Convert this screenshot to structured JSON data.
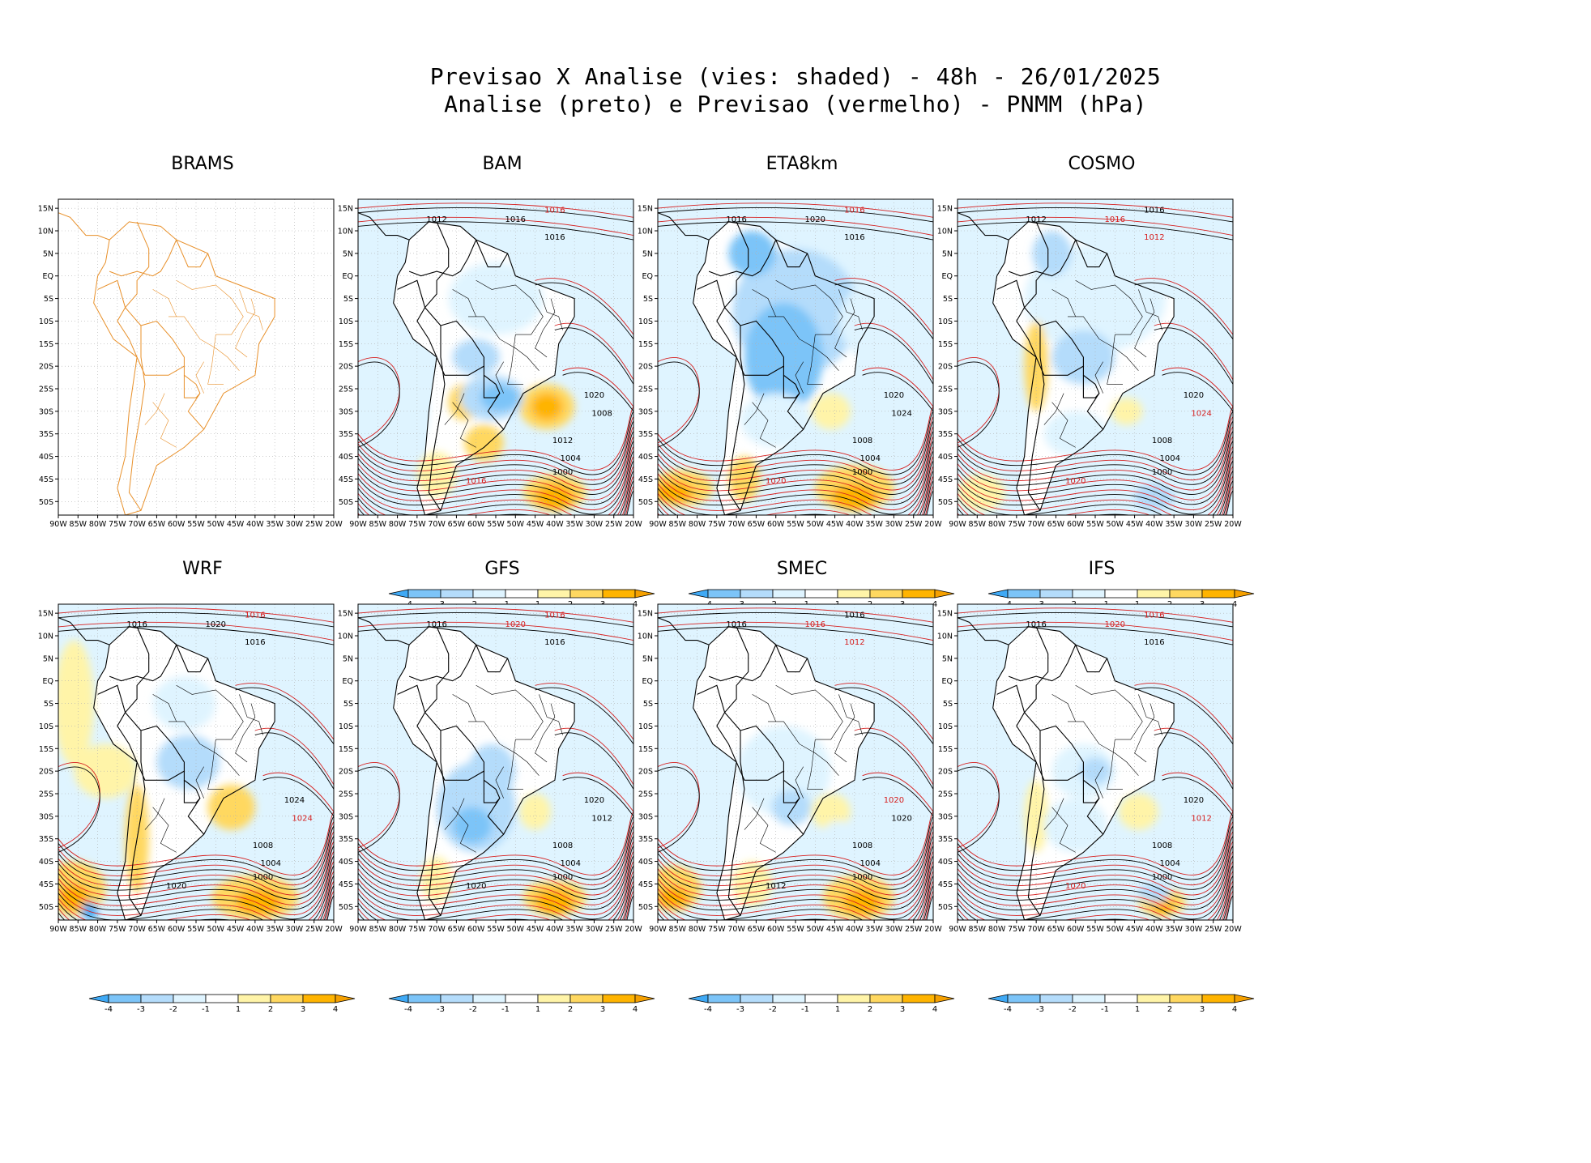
{
  "header": {
    "title_line1": "Previsao X Analise (vies: shaded) - 48h - 26/01/2025",
    "title_line2": "Analise (preto) e Previsao (vermelho) - PNMM (hPa)"
  },
  "axes": {
    "lon_labels": [
      "90W",
      "85W",
      "80W",
      "75W",
      "70W",
      "65W",
      "60W",
      "55W",
      "50W",
      "45W",
      "40W",
      "35W",
      "30W",
      "25W",
      "20W"
    ],
    "lat_labels": [
      "15N",
      "10N",
      "5N",
      "EQ",
      "5S",
      "10S",
      "15S",
      "20S",
      "25S",
      "30S",
      "35S",
      "40S",
      "45S",
      "50S"
    ]
  },
  "colorbar": {
    "labels": [
      "-4",
      "-3",
      "-2",
      "-1",
      "1",
      "2",
      "3",
      "4"
    ],
    "colors": [
      "#3fa9f5",
      "#7cc4f8",
      "#b4dcfb",
      "#dff4ff",
      "#ffffff",
      "#fff4a8",
      "#ffd860",
      "#ffb400",
      "#f5a000"
    ]
  },
  "colors": {
    "analysis": "#000000",
    "forecast": "#d62020",
    "coast_brams": "#e8902a"
  },
  "panels": [
    {
      "name": "BRAMS",
      "bias": "none",
      "colorbar": false,
      "isobars": []
    },
    {
      "name": "BAM",
      "bias": "bam",
      "colorbar": true,
      "isobars": [
        {
          "t": "1012",
          "c": "a"
        },
        {
          "t": "1016",
          "c": "a"
        },
        {
          "t": "1016",
          "c": "f"
        },
        {
          "t": "1016",
          "c": "a"
        },
        {
          "t": "1020",
          "c": "a"
        },
        {
          "t": "1008",
          "c": "a"
        },
        {
          "t": "1012",
          "c": "a"
        },
        {
          "t": "1004",
          "c": "a"
        },
        {
          "t": "1000",
          "c": "a"
        },
        {
          "t": "1016",
          "c": "f"
        }
      ]
    },
    {
      "name": "ETA8km",
      "bias": "eta",
      "colorbar": true,
      "isobars": [
        {
          "t": "1016",
          "c": "a"
        },
        {
          "t": "1020",
          "c": "a"
        },
        {
          "t": "1016",
          "c": "f"
        },
        {
          "t": "1016",
          "c": "a"
        },
        {
          "t": "1020",
          "c": "a"
        },
        {
          "t": "1024",
          "c": "a"
        },
        {
          "t": "1008",
          "c": "a"
        },
        {
          "t": "1004",
          "c": "a"
        },
        {
          "t": "1000",
          "c": "a"
        },
        {
          "t": "1020",
          "c": "f"
        }
      ]
    },
    {
      "name": "COSMO",
      "bias": "cosmo",
      "colorbar": true,
      "isobars": [
        {
          "t": "1012",
          "c": "a"
        },
        {
          "t": "1016",
          "c": "f"
        },
        {
          "t": "1016",
          "c": "a"
        },
        {
          "t": "1012",
          "c": "f"
        },
        {
          "t": "1020",
          "c": "a"
        },
        {
          "t": "1024",
          "c": "f"
        },
        {
          "t": "1008",
          "c": "a"
        },
        {
          "t": "1004",
          "c": "a"
        },
        {
          "t": "1000",
          "c": "a"
        },
        {
          "t": "1020",
          "c": "f"
        }
      ]
    },
    {
      "name": "WRF",
      "bias": "wrf",
      "colorbar": true,
      "isobars": [
        {
          "t": "1016",
          "c": "a"
        },
        {
          "t": "1020",
          "c": "a"
        },
        {
          "t": "1016",
          "c": "f"
        },
        {
          "t": "1016",
          "c": "a"
        },
        {
          "t": "1024",
          "c": "a"
        },
        {
          "t": "1024",
          "c": "f"
        },
        {
          "t": "1008",
          "c": "a"
        },
        {
          "t": "1004",
          "c": "a"
        },
        {
          "t": "1000",
          "c": "a"
        },
        {
          "t": "1020",
          "c": "a"
        }
      ]
    },
    {
      "name": "GFS",
      "bias": "gfs",
      "colorbar": true,
      "isobars": [
        {
          "t": "1016",
          "c": "a"
        },
        {
          "t": "1020",
          "c": "f"
        },
        {
          "t": "1016",
          "c": "f"
        },
        {
          "t": "1016",
          "c": "a"
        },
        {
          "t": "1020",
          "c": "a"
        },
        {
          "t": "1012",
          "c": "a"
        },
        {
          "t": "1008",
          "c": "a"
        },
        {
          "t": "1004",
          "c": "a"
        },
        {
          "t": "1000",
          "c": "a"
        },
        {
          "t": "1020",
          "c": "a"
        }
      ]
    },
    {
      "name": "SMEC",
      "bias": "smec",
      "colorbar": true,
      "isobars": [
        {
          "t": "1016",
          "c": "a"
        },
        {
          "t": "1016",
          "c": "f"
        },
        {
          "t": "1016",
          "c": "a"
        },
        {
          "t": "1012",
          "c": "f"
        },
        {
          "t": "1020",
          "c": "f"
        },
        {
          "t": "1020",
          "c": "a"
        },
        {
          "t": "1008",
          "c": "a"
        },
        {
          "t": "1004",
          "c": "a"
        },
        {
          "t": "1000",
          "c": "a"
        },
        {
          "t": "1012",
          "c": "a"
        }
      ]
    },
    {
      "name": "IFS",
      "bias": "ifs",
      "colorbar": true,
      "isobars": [
        {
          "t": "1016",
          "c": "a"
        },
        {
          "t": "1020",
          "c": "f"
        },
        {
          "t": "1016",
          "c": "f"
        },
        {
          "t": "1016",
          "c": "a"
        },
        {
          "t": "1020",
          "c": "a"
        },
        {
          "t": "1012",
          "c": "f"
        },
        {
          "t": "1008",
          "c": "a"
        },
        {
          "t": "1004",
          "c": "a"
        },
        {
          "t": "1000",
          "c": "a"
        },
        {
          "t": "1020",
          "c": "f"
        }
      ]
    }
  ]
}
